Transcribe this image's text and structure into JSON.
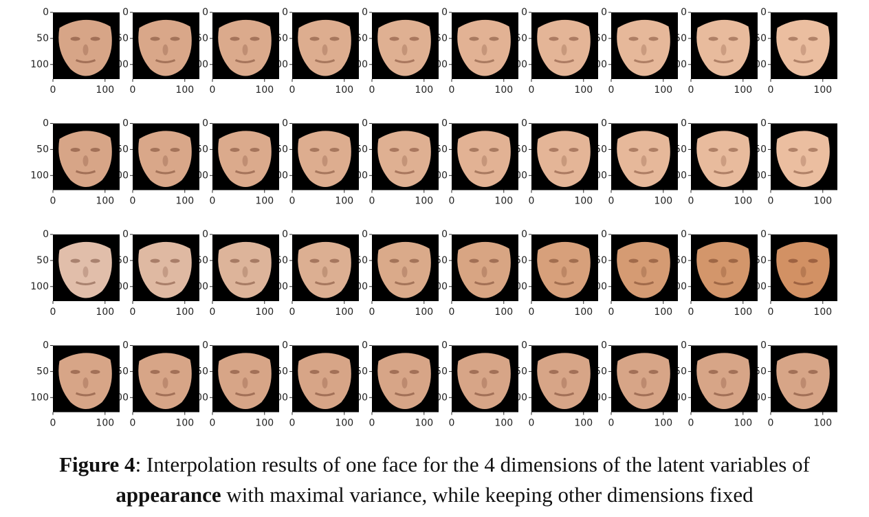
{
  "figure": {
    "axes": {
      "xlim": [
        0,
        128
      ],
      "ylim": [
        0,
        128
      ],
      "xticks": [
        0,
        100
      ],
      "yticks": [
        0,
        50,
        100
      ]
    },
    "rows": 4,
    "columns": 10,
    "caption": {
      "label": "Figure 4",
      "text1": ": Interpolation results of one face for the 4 dimensions of the latent variables of",
      "emphasis": "appearance",
      "text2": " with maximal variance, while keeping other dimensions fixed"
    }
  }
}
